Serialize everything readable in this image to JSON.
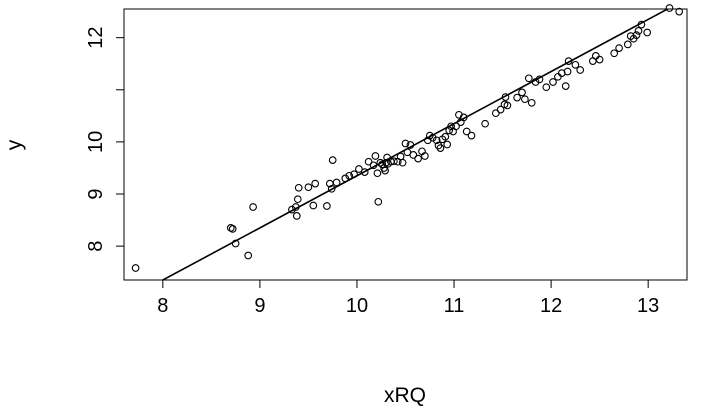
{
  "chart_data": {
    "type": "scatter",
    "title": "",
    "xlabel": "xRQ",
    "ylabel": "y",
    "xlim": [
      7.6,
      13.4
    ],
    "ylim": [
      7.35,
      12.55
    ],
    "x_ticks": [
      8,
      9,
      10,
      11,
      12,
      13
    ],
    "x_tick_labels": [
      "8",
      "9",
      "10",
      "11",
      "12",
      "13"
    ],
    "y_ticks": [
      8,
      9,
      10,
      11,
      12
    ],
    "y_tick_labels": [
      "8",
      "9",
      "10",
      "",
      "12"
    ],
    "grid": false,
    "legend": "none",
    "marker": "open-circle",
    "colors": {
      "points": "#000000",
      "line": "#000000",
      "frame": "#000000"
    },
    "fit_line": {
      "intercept": -0.65,
      "slope": 1.0,
      "x_range": [
        7.6,
        13.35
      ]
    },
    "points": [
      [
        7.72,
        7.58
      ],
      [
        8.7,
        8.35
      ],
      [
        8.72,
        8.33
      ],
      [
        8.75,
        8.05
      ],
      [
        8.88,
        7.82
      ],
      [
        8.93,
        8.75
      ],
      [
        9.33,
        8.7
      ],
      [
        9.37,
        8.75
      ],
      [
        9.38,
        8.58
      ],
      [
        9.39,
        8.9
      ],
      [
        9.4,
        9.12
      ],
      [
        9.5,
        9.13
      ],
      [
        9.55,
        8.78
      ],
      [
        9.57,
        9.2
      ],
      [
        9.69,
        8.77
      ],
      [
        9.72,
        9.2
      ],
      [
        9.74,
        9.1
      ],
      [
        9.75,
        9.65
      ],
      [
        9.79,
        9.22
      ],
      [
        9.88,
        9.3
      ],
      [
        9.92,
        9.35
      ],
      [
        9.97,
        9.38
      ],
      [
        10.02,
        9.48
      ],
      [
        10.08,
        9.42
      ],
      [
        10.12,
        9.62
      ],
      [
        10.17,
        9.55
      ],
      [
        10.19,
        9.73
      ],
      [
        10.21,
        9.4
      ],
      [
        10.22,
        8.85
      ],
      [
        10.24,
        9.6
      ],
      [
        10.26,
        9.57
      ],
      [
        10.28,
        9.5
      ],
      [
        10.29,
        9.45
      ],
      [
        10.3,
        9.6
      ],
      [
        10.31,
        9.7
      ],
      [
        10.32,
        9.58
      ],
      [
        10.35,
        9.62
      ],
      [
        10.38,
        9.63
      ],
      [
        10.42,
        9.62
      ],
      [
        10.45,
        9.72
      ],
      [
        10.47,
        9.6
      ],
      [
        10.5,
        9.97
      ],
      [
        10.52,
        9.8
      ],
      [
        10.55,
        9.94
      ],
      [
        10.58,
        9.75
      ],
      [
        10.63,
        9.68
      ],
      [
        10.67,
        9.82
      ],
      [
        10.7,
        9.73
      ],
      [
        10.73,
        10.03
      ],
      [
        10.75,
        10.12
      ],
      [
        10.78,
        10.08
      ],
      [
        10.82,
        10.03
      ],
      [
        10.84,
        9.93
      ],
      [
        10.86,
        9.88
      ],
      [
        10.88,
        10.05
      ],
      [
        10.91,
        10.1
      ],
      [
        10.93,
        9.95
      ],
      [
        10.95,
        10.22
      ],
      [
        10.97,
        10.3
      ],
      [
        10.99,
        10.2
      ],
      [
        11.02,
        10.3
      ],
      [
        11.05,
        10.52
      ],
      [
        11.07,
        10.38
      ],
      [
        11.1,
        10.47
      ],
      [
        11.13,
        10.2
      ],
      [
        11.18,
        10.12
      ],
      [
        11.32,
        10.35
      ],
      [
        11.43,
        10.55
      ],
      [
        11.48,
        10.62
      ],
      [
        11.52,
        10.72
      ],
      [
        11.53,
        10.86
      ],
      [
        11.55,
        10.7
      ],
      [
        11.65,
        10.85
      ],
      [
        11.7,
        10.95
      ],
      [
        11.73,
        10.82
      ],
      [
        11.77,
        11.22
      ],
      [
        11.8,
        10.75
      ],
      [
        11.84,
        11.15
      ],
      [
        11.88,
        11.2
      ],
      [
        11.95,
        11.05
      ],
      [
        12.02,
        11.15
      ],
      [
        12.07,
        11.25
      ],
      [
        12.11,
        11.32
      ],
      [
        12.15,
        11.07
      ],
      [
        12.17,
        11.35
      ],
      [
        12.18,
        11.55
      ],
      [
        12.25,
        11.48
      ],
      [
        12.3,
        11.38
      ],
      [
        12.43,
        11.55
      ],
      [
        12.46,
        11.65
      ],
      [
        12.5,
        11.58
      ],
      [
        12.65,
        11.7
      ],
      [
        12.7,
        11.8
      ],
      [
        12.79,
        11.87
      ],
      [
        12.82,
        12.03
      ],
      [
        12.85,
        11.98
      ],
      [
        12.88,
        12.05
      ],
      [
        12.9,
        12.13
      ],
      [
        12.93,
        12.25
      ],
      [
        12.99,
        12.1
      ],
      [
        13.22,
        12.57
      ],
      [
        13.32,
        12.5
      ]
    ]
  }
}
